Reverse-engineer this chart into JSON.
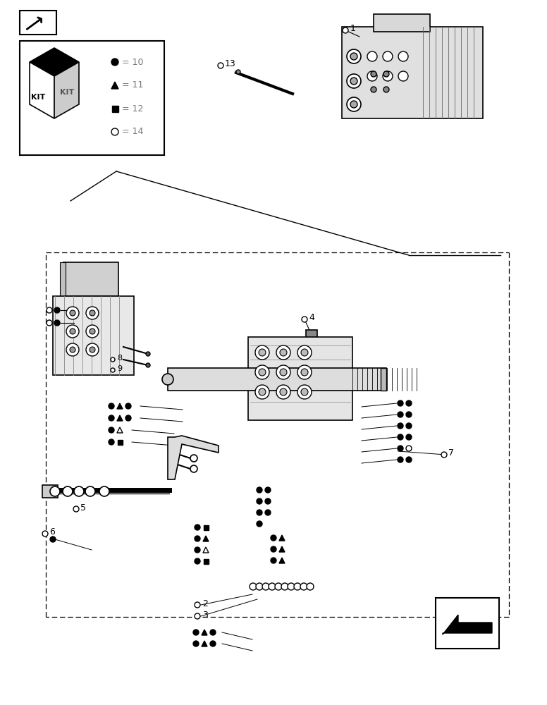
{
  "bg_color": "#ffffff",
  "line_color": "#000000",
  "gray_light": "#d8d8d8",
  "gray_medium": "#aaaaaa"
}
